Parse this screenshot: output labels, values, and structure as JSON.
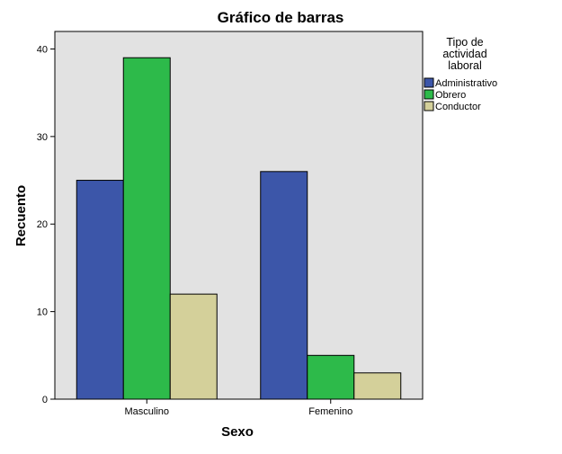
{
  "chart_data": {
    "type": "bar",
    "title": "Gráfico de barras",
    "xlabel": "Sexo",
    "ylabel": "Recuento",
    "categories": [
      "Masculino",
      "Femenino"
    ],
    "series": [
      {
        "name": "Administrativo",
        "values": [
          25,
          26
        ],
        "color": "#3C56A9"
      },
      {
        "name": "Obrero",
        "values": [
          39,
          5
        ],
        "color": "#2DBA4A"
      },
      {
        "name": "Conductor",
        "values": [
          12,
          3
        ],
        "color": "#D4D09A"
      }
    ],
    "ylim": [
      0,
      42
    ],
    "yticks": [
      0,
      10,
      20,
      30,
      40
    ],
    "grid": false,
    "legend": {
      "title_lines": [
        "Tipo de",
        "actividad",
        "laboral"
      ],
      "placement": "right"
    },
    "plot_background": "#E2E2E2"
  }
}
